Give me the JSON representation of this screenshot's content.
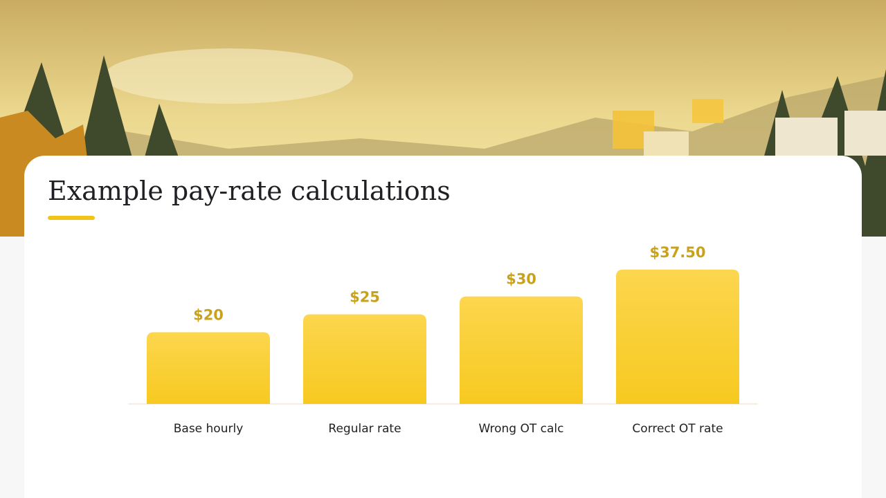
{
  "chart_data": {
    "type": "bar",
    "title": "Example pay-rate calculations",
    "categories": [
      "Base hourly",
      "Regular rate",
      "Wrong OT calc",
      "Correct OT rate"
    ],
    "values": [
      20,
      25,
      30,
      37.5
    ],
    "value_labels": [
      "$20",
      "$25",
      "$30",
      "$37.50"
    ],
    "color": "#f9cf35"
  }
}
